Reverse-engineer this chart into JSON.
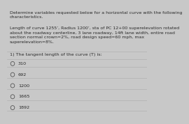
{
  "background_color": "#c8c8c8",
  "title_text": "Determine variables requested below for a horizontal curve with the following\ncharacteristics.",
  "body_text": "Length of curve 1255’, Radius 1200’, sta of PC 12+00 superelevation rotated\nabout the roadway centerline, 3 lane roadway, 14ft lane width, entire road\nsection normal crown=2%, road design speed=60 mph, max\nsuperelevation=8%.",
  "question_text": "1) The tangent length of the curve (T) is:",
  "options": [
    "310",
    "692",
    "1200",
    "1665",
    "1892"
  ],
  "font_size_title": 4.5,
  "font_size_body": 4.5,
  "font_size_question": 4.6,
  "font_size_options": 4.6,
  "text_color": "#2a2a2a",
  "divider_color": "#aaaaaa",
  "circle_color": "#555555"
}
